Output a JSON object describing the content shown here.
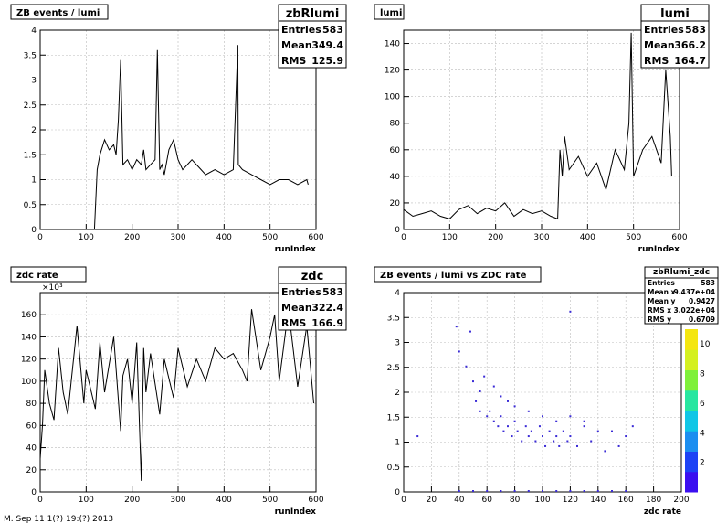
{
  "footer_text": "M. Sep 11 1(?) 19:(?) 2013",
  "chart_data": [
    {
      "type": "line",
      "title": "ZB events / lumi",
      "xlabel": "runIndex",
      "ylabel": "",
      "xlim": [
        0,
        600
      ],
      "ylim": [
        0,
        4
      ],
      "xticks": [
        "0",
        "100",
        "200",
        "300",
        "400",
        "500",
        "600"
      ],
      "yticks": [
        "0",
        "0.5",
        "1",
        "1.5",
        "2",
        "2.5",
        "3",
        "3.5",
        "4"
      ],
      "grid": true,
      "stats": {
        "name": "zbRlumi",
        "rows": [
          [
            "Entries",
            "583"
          ],
          [
            "Mean",
            "349.4"
          ],
          [
            "RMS",
            "125.9"
          ]
        ]
      },
      "series": [
        {
          "x": [
            0,
            118,
            124,
            130,
            140,
            150,
            160,
            165,
            170,
            175,
            180,
            190,
            200,
            210,
            220,
            225,
            230,
            240,
            250,
            255,
            260,
            265,
            270,
            280,
            290,
            300,
            310,
            320,
            330,
            340,
            350,
            360,
            380,
            400,
            420,
            430,
            431,
            440,
            460,
            480,
            500,
            520,
            540,
            560,
            580,
            583
          ],
          "y": [
            0,
            0,
            1.2,
            1.5,
            1.8,
            1.6,
            1.7,
            1.5,
            2.2,
            3.4,
            1.3,
            1.4,
            1.2,
            1.4,
            1.3,
            1.6,
            1.2,
            1.3,
            1.4,
            3.6,
            1.2,
            1.3,
            1.1,
            1.6,
            1.8,
            1.4,
            1.2,
            1.3,
            1.4,
            1.3,
            1.2,
            1.1,
            1.2,
            1.1,
            1.2,
            3.7,
            1.3,
            1.2,
            1.1,
            1.0,
            0.9,
            1.0,
            1.0,
            0.9,
            1.0,
            0.9
          ]
        }
      ]
    },
    {
      "type": "line",
      "title": "lumi",
      "xlabel": "runIndex",
      "ylabel": "",
      "xlim": [
        0,
        600
      ],
      "ylim": [
        0,
        150
      ],
      "xticks": [
        "0",
        "100",
        "200",
        "300",
        "400",
        "500",
        "600"
      ],
      "yticks": [
        "0",
        "20",
        "40",
        "60",
        "80",
        "100",
        "120",
        "140"
      ],
      "grid": true,
      "stats": {
        "name": "lumi",
        "rows": [
          [
            "Entries",
            "583"
          ],
          [
            "Mean",
            "366.2"
          ],
          [
            "RMS",
            "164.7"
          ]
        ]
      },
      "series": [
        {
          "x": [
            0,
            20,
            40,
            60,
            80,
            100,
            120,
            140,
            160,
            180,
            200,
            220,
            240,
            260,
            280,
            300,
            320,
            335,
            340,
            345,
            350,
            360,
            380,
            400,
            420,
            440,
            460,
            480,
            490,
            495,
            500,
            520,
            540,
            560,
            570,
            580,
            583
          ],
          "y": [
            15,
            10,
            12,
            14,
            10,
            8,
            15,
            18,
            12,
            16,
            14,
            20,
            10,
            15,
            12,
            14,
            10,
            8,
            60,
            40,
            70,
            45,
            55,
            40,
            50,
            30,
            60,
            45,
            80,
            148,
            40,
            60,
            70,
            50,
            120,
            70,
            40
          ]
        }
      ]
    },
    {
      "type": "line",
      "title": "zdc rate",
      "xlabel": "runIndex",
      "ylabel": "",
      "multiplier": "×10³",
      "xlim": [
        0,
        600
      ],
      "ylim": [
        0,
        180
      ],
      "xticks": [
        "0",
        "100",
        "200",
        "300",
        "400",
        "500",
        "600"
      ],
      "yticks": [
        "0",
        "20",
        "40",
        "60",
        "80",
        "100",
        "120",
        "140",
        "160"
      ],
      "grid": true,
      "stats": {
        "name": "zdc",
        "rows": [
          [
            "Entries",
            "583"
          ],
          [
            "Mean",
            "322.4"
          ],
          [
            "RMS",
            "166.9"
          ]
        ]
      },
      "series": [
        {
          "x": [
            0,
            5,
            10,
            20,
            30,
            40,
            50,
            60,
            80,
            95,
            100,
            120,
            130,
            140,
            160,
            175,
            180,
            190,
            200,
            210,
            220,
            225,
            230,
            240,
            260,
            270,
            290,
            300,
            320,
            340,
            360,
            380,
            400,
            420,
            440,
            450,
            460,
            480,
            500,
            510,
            520,
            540,
            560,
            580,
            595
          ],
          "y": [
            30,
            60,
            110,
            80,
            65,
            130,
            90,
            70,
            150,
            80,
            110,
            75,
            135,
            90,
            140,
            55,
            105,
            120,
            80,
            135,
            10,
            130,
            90,
            125,
            70,
            120,
            85,
            130,
            95,
            120,
            100,
            130,
            120,
            125,
            110,
            100,
            165,
            110,
            140,
            160,
            100,
            165,
            95,
            150,
            80
          ]
        }
      ]
    },
    {
      "type": "scatter",
      "title": "ZB events / lumi vs ZDC rate",
      "xlabel": "zdc rate",
      "ylabel": "",
      "xlim": [
        0,
        200
      ],
      "ylim": [
        0,
        4
      ],
      "xticks": [
        "0",
        "20",
        "40",
        "60",
        "80",
        "100",
        "120",
        "140",
        "160",
        "180",
        "200"
      ],
      "yticks": [
        "0",
        "0.5",
        "1",
        "1.5",
        "2",
        "2.5",
        "3",
        "3.5",
        "4"
      ],
      "grid": true,
      "stats": {
        "name": "zbRlumi_zdc",
        "rows": [
          [
            "Entries",
            "583"
          ],
          [
            "Mean x",
            "9.437e+04"
          ],
          [
            "Mean y",
            "0.9427"
          ],
          [
            "RMS x",
            "3.022e+04"
          ],
          [
            "RMS y",
            "0.6709"
          ]
        ]
      },
      "colorbar": {
        "ticks": [
          "2",
          "4",
          "6",
          "8",
          "10"
        ],
        "min": 0,
        "max": 11
      },
      "series": [
        {
          "points": [
            [
              38,
              3.3
            ],
            [
              40,
              2.8
            ],
            [
              45,
              2.5
            ],
            [
              48,
              3.2
            ],
            [
              50,
              2.2
            ],
            [
              55,
              2.0
            ],
            [
              52,
              1.8
            ],
            [
              58,
              2.3
            ],
            [
              60,
              1.5
            ],
            [
              62,
              1.6
            ],
            [
              65,
              1.4
            ],
            [
              68,
              1.3
            ],
            [
              70,
              1.5
            ],
            [
              72,
              1.2
            ],
            [
              75,
              1.3
            ],
            [
              78,
              1.1
            ],
            [
              80,
              1.4
            ],
            [
              82,
              1.2
            ],
            [
              85,
              1.0
            ],
            [
              88,
              1.3
            ],
            [
              90,
              1.1
            ],
            [
              92,
              1.2
            ],
            [
              95,
              1.0
            ],
            [
              98,
              1.3
            ],
            [
              100,
              1.1
            ],
            [
              102,
              0.9
            ],
            [
              105,
              1.2
            ],
            [
              108,
              1.0
            ],
            [
              110,
              1.1
            ],
            [
              112,
              0.9
            ],
            [
              115,
              1.2
            ],
            [
              118,
              1.0
            ],
            [
              120,
              1.1
            ],
            [
              125,
              0.9
            ],
            [
              130,
              1.3
            ],
            [
              135,
              1.0
            ],
            [
              140,
              1.2
            ],
            [
              145,
              0.8
            ],
            [
              150,
              1.2
            ],
            [
              155,
              0.9
            ],
            [
              160,
              1.1
            ],
            [
              165,
              1.3
            ],
            [
              100,
              1.5
            ],
            [
              90,
              1.6
            ],
            [
              80,
              1.7
            ],
            [
              75,
              1.8
            ],
            [
              110,
              1.4
            ],
            [
              120,
              1.5
            ],
            [
              130,
              1.4
            ],
            [
              70,
              1.9
            ],
            [
              65,
              2.1
            ],
            [
              10,
              1.1
            ],
            [
              55,
              1.6
            ],
            [
              60,
              0
            ],
            [
              70,
              0
            ],
            [
              80,
              0
            ],
            [
              90,
              0
            ],
            [
              100,
              0
            ],
            [
              110,
              0
            ],
            [
              120,
              0
            ],
            [
              130,
              0
            ],
            [
              140,
              0
            ],
            [
              150,
              0
            ],
            [
              40,
              0
            ],
            [
              50,
              0
            ],
            [
              160,
              0
            ],
            [
              120,
              3.6
            ]
          ]
        }
      ]
    }
  ]
}
